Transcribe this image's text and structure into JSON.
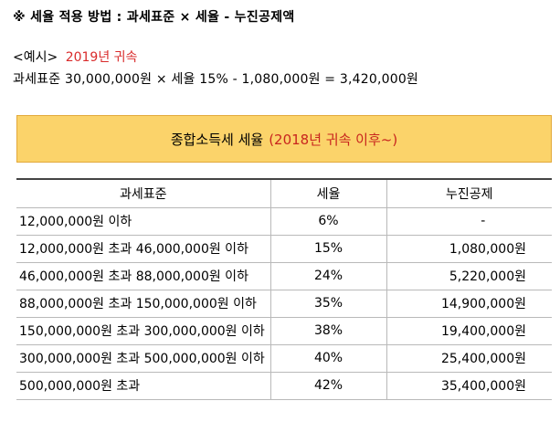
{
  "heading": "※ 세율 적용 방법 : 과세표준 × 세율 - 누진공제액",
  "example": {
    "label": "<예시>",
    "year": "2019년 귀속",
    "formula": "과세표준 30,000,000원 × 세율 15% - 1,080,000원 = 3,420,000원"
  },
  "table_title": {
    "main": "종합소득세 세율",
    "accent": "(2018년 귀속 이후~)"
  },
  "colors": {
    "title_bg": "#fbd36a",
    "accent_red": "#d92b2b"
  },
  "table": {
    "headers": [
      "과세표준",
      "세율",
      "누진공제"
    ],
    "rows": [
      [
        "12,000,000원 이하",
        "6%",
        "-"
      ],
      [
        "12,000,000원 초과 46,000,000원 이하",
        "15%",
        "1,080,000원"
      ],
      [
        "46,000,000원 초과 88,000,000원 이하",
        "24%",
        "5,220,000원"
      ],
      [
        "88,000,000원 초과 150,000,000원 이하",
        "35%",
        "14,900,000원"
      ],
      [
        "150,000,000원 초과 300,000,000원 이하",
        "38%",
        "19,400,000원"
      ],
      [
        "300,000,000원 초과 500,000,000원 이하",
        "40%",
        "25,400,000원"
      ],
      [
        "500,000,000원 초과",
        "42%",
        "35,400,000원"
      ]
    ]
  }
}
